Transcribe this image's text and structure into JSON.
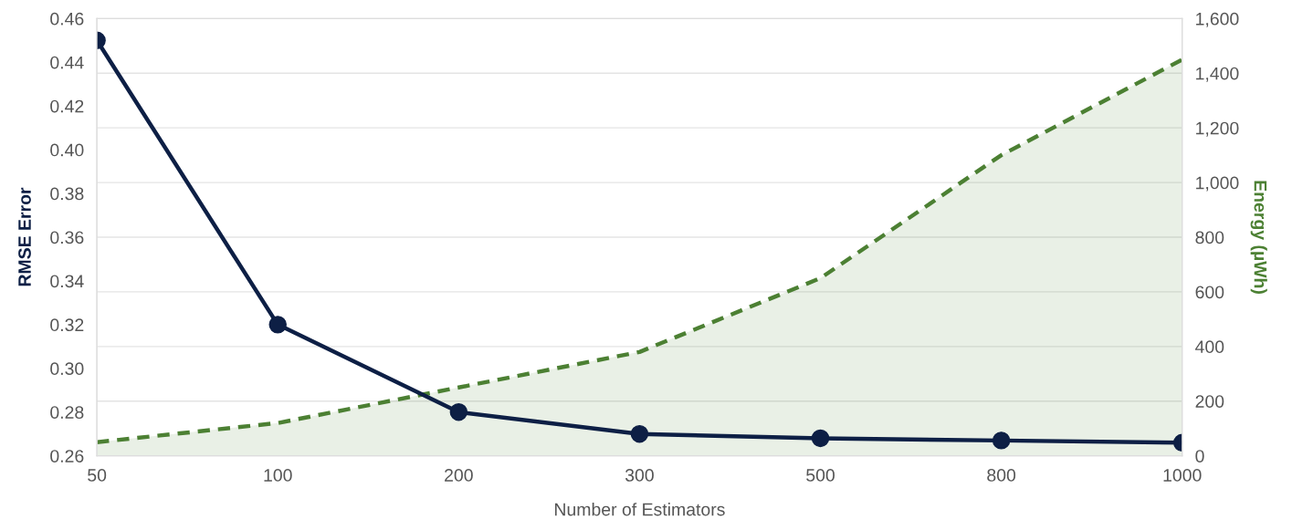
{
  "chart_data": {
    "type": "line",
    "xlabel": "Number of Estimators",
    "ylabel": "RMSE Error",
    "y2label": "Energy (µWh)",
    "categories": [
      "50",
      "100",
      "200",
      "300",
      "500",
      "800",
      "1000"
    ],
    "series": [
      {
        "type": "area",
        "axis": "y2",
        "color": "#4c8033",
        "line_style": "dashed",
        "marker": "none",
        "values": [
          50,
          120,
          250,
          380,
          650,
          1100,
          1450
        ]
      },
      {
        "color": "#0d1f45",
        "line_style": "solid",
        "marker": "circle",
        "values": [
          0.45,
          0.32,
          0.28,
          0.27,
          0.268,
          0.267,
          0.266
        ]
      }
    ],
    "ylim": [
      0.26,
      0.46
    ],
    "yticks": [
      0.26,
      0.28,
      {
        "value": 0.3,
        "label": "0.30"
      },
      0.32,
      0.34,
      0.36,
      0.38,
      {
        "value": 0.4,
        "label": "0.40"
      },
      0.42,
      0.44,
      0.46
    ],
    "y2lim": [
      0,
      1600
    ],
    "y2ticks": [
      0,
      200,
      400,
      600,
      800,
      {
        "value": 1000,
        "label": "1,000"
      },
      {
        "value": 1200,
        "label": "1,200"
      },
      {
        "value": 1400,
        "label": "1,400"
      },
      {
        "value": 1600,
        "label": "1,600"
      }
    ],
    "grid": "y",
    "legend": false
  }
}
